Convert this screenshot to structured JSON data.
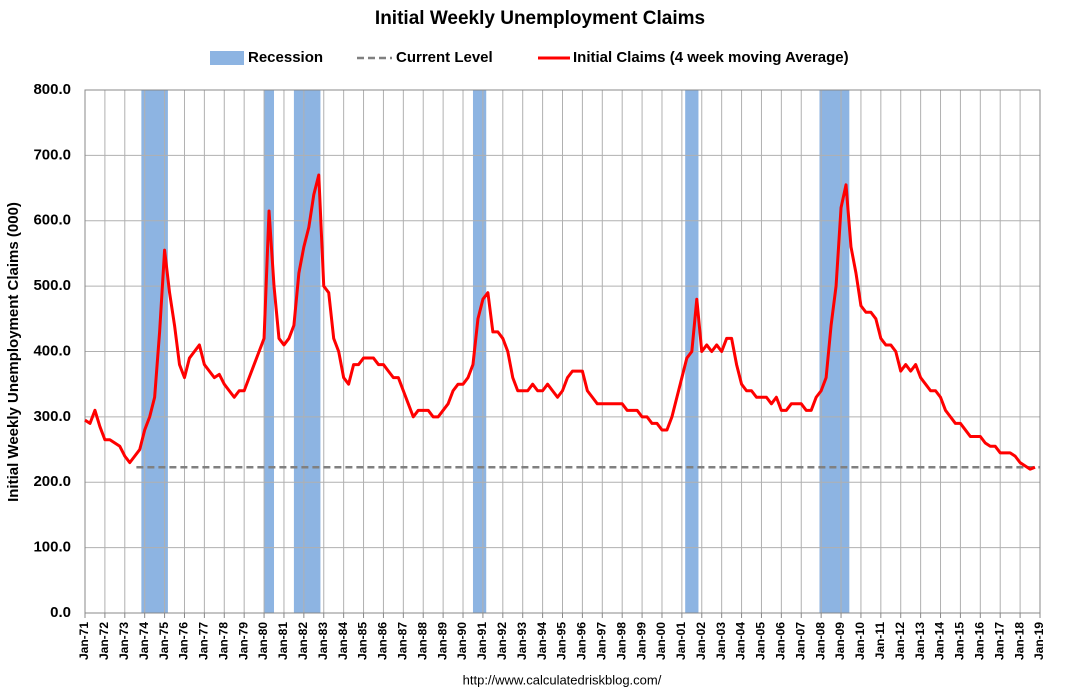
{
  "chart_data": {
    "type": "line",
    "title": "Initial Weekly Unemployment Claims",
    "y_label": "Initial Weekly Unemployment Claims (000)",
    "source": "http://www.calculatedriskblog.com/",
    "grid": true,
    "ylim": [
      0,
      800
    ],
    "yticks": [
      {
        "value": 0,
        "label": "0.0"
      },
      {
        "value": 100,
        "label": "100.0"
      },
      {
        "value": 200,
        "label": "200.0"
      },
      {
        "value": 300,
        "label": "300.0"
      },
      {
        "value": 400,
        "label": "400.0"
      },
      {
        "value": 500,
        "label": "500.0"
      },
      {
        "value": 600,
        "label": "600.0"
      },
      {
        "value": 700,
        "label": "700.0"
      },
      {
        "value": 800,
        "label": "800.0"
      }
    ],
    "xlim": [
      "1971-01",
      "2019-01"
    ],
    "xticks": [
      {
        "value": "1971-01",
        "label": "Jan-71"
      },
      {
        "value": "1972-01",
        "label": "Jan-72"
      },
      {
        "value": "1973-01",
        "label": "Jan-73"
      },
      {
        "value": "1974-01",
        "label": "Jan-74"
      },
      {
        "value": "1975-01",
        "label": "Jan-75"
      },
      {
        "value": "1976-01",
        "label": "Jan-76"
      },
      {
        "value": "1977-01",
        "label": "Jan-77"
      },
      {
        "value": "1978-01",
        "label": "Jan-78"
      },
      {
        "value": "1979-01",
        "label": "Jan-79"
      },
      {
        "value": "1980-01",
        "label": "Jan-80"
      },
      {
        "value": "1981-01",
        "label": "Jan-81"
      },
      {
        "value": "1982-01",
        "label": "Jan-82"
      },
      {
        "value": "1983-01",
        "label": "Jan-83"
      },
      {
        "value": "1984-01",
        "label": "Jan-84"
      },
      {
        "value": "1985-01",
        "label": "Jan-85"
      },
      {
        "value": "1986-01",
        "label": "Jan-86"
      },
      {
        "value": "1987-01",
        "label": "Jan-87"
      },
      {
        "value": "1988-01",
        "label": "Jan-88"
      },
      {
        "value": "1989-01",
        "label": "Jan-89"
      },
      {
        "value": "1990-01",
        "label": "Jan-90"
      },
      {
        "value": "1991-01",
        "label": "Jan-91"
      },
      {
        "value": "1992-01",
        "label": "Jan-92"
      },
      {
        "value": "1993-01",
        "label": "Jan-93"
      },
      {
        "value": "1994-01",
        "label": "Jan-94"
      },
      {
        "value": "1995-01",
        "label": "Jan-95"
      },
      {
        "value": "1996-01",
        "label": "Jan-96"
      },
      {
        "value": "1997-01",
        "label": "Jan-97"
      },
      {
        "value": "1998-01",
        "label": "Jan-98"
      },
      {
        "value": "1999-01",
        "label": "Jan-99"
      },
      {
        "value": "2000-01",
        "label": "Jan-00"
      },
      {
        "value": "2001-01",
        "label": "Jan-01"
      },
      {
        "value": "2002-01",
        "label": "Jan-02"
      },
      {
        "value": "2003-01",
        "label": "Jan-03"
      },
      {
        "value": "2004-01",
        "label": "Jan-04"
      },
      {
        "value": "2005-01",
        "label": "Jan-05"
      },
      {
        "value": "2006-01",
        "label": "Jan-06"
      },
      {
        "value": "2007-01",
        "label": "Jan-07"
      },
      {
        "value": "2008-01",
        "label": "Jan-08"
      },
      {
        "value": "2009-01",
        "label": "Jan-09"
      },
      {
        "value": "2010-01",
        "label": "Jan-10"
      },
      {
        "value": "2011-01",
        "label": "Jan-11"
      },
      {
        "value": "2012-01",
        "label": "Jan-12"
      },
      {
        "value": "2013-01",
        "label": "Jan-13"
      },
      {
        "value": "2014-01",
        "label": "Jan-14"
      },
      {
        "value": "2015-01",
        "label": "Jan-15"
      },
      {
        "value": "2016-01",
        "label": "Jan-16"
      },
      {
        "value": "2017-01",
        "label": "Jan-17"
      },
      {
        "value": "2018-01",
        "label": "Jan-18"
      },
      {
        "value": "2019-01",
        "label": "Jan-19"
      }
    ],
    "recessions": {
      "name": "Recession",
      "color": "#8db4e2",
      "periods": [
        [
          "1973-11",
          "1975-03"
        ],
        [
          "1980-01",
          "1980-07"
        ],
        [
          "1981-07",
          "1982-11"
        ],
        [
          "1990-07",
          "1991-03"
        ],
        [
          "2001-03",
          "2001-11"
        ],
        [
          "2007-12",
          "2009-06"
        ]
      ]
    },
    "current_level": {
      "name": "Current Level",
      "color": "#808080",
      "value": 223,
      "x": [
        "1973-08",
        "2019-01"
      ]
    },
    "series": [
      {
        "name": "Initial Claims (4 week moving Average)",
        "color": "#ff0000",
        "x": [
          "1971-01",
          "1971-04",
          "1971-07",
          "1971-10",
          "1972-01",
          "1972-04",
          "1972-07",
          "1972-10",
          "1973-01",
          "1973-04",
          "1973-07",
          "1973-10",
          "1974-01",
          "1974-04",
          "1974-07",
          "1974-10",
          "1975-01",
          "1975-04",
          "1975-07",
          "1975-10",
          "1976-01",
          "1976-04",
          "1976-07",
          "1976-10",
          "1977-01",
          "1977-04",
          "1977-07",
          "1977-10",
          "1978-01",
          "1978-04",
          "1978-07",
          "1978-10",
          "1979-01",
          "1979-04",
          "1979-07",
          "1979-10",
          "1980-01",
          "1980-04",
          "1980-07",
          "1980-10",
          "1981-01",
          "1981-04",
          "1981-07",
          "1981-10",
          "1982-01",
          "1982-04",
          "1982-07",
          "1982-10",
          "1983-01",
          "1983-04",
          "1983-07",
          "1983-10",
          "1984-01",
          "1984-04",
          "1984-07",
          "1984-10",
          "1985-01",
          "1985-04",
          "1985-07",
          "1985-10",
          "1986-01",
          "1986-04",
          "1986-07",
          "1986-10",
          "1987-01",
          "1987-04",
          "1987-07",
          "1987-10",
          "1988-01",
          "1988-04",
          "1988-07",
          "1988-10",
          "1989-01",
          "1989-04",
          "1989-07",
          "1989-10",
          "1990-01",
          "1990-04",
          "1990-07",
          "1990-10",
          "1991-01",
          "1991-04",
          "1991-07",
          "1991-10",
          "1992-01",
          "1992-04",
          "1992-07",
          "1992-10",
          "1993-01",
          "1993-04",
          "1993-07",
          "1993-10",
          "1994-01",
          "1994-04",
          "1994-07",
          "1994-10",
          "1995-01",
          "1995-04",
          "1995-07",
          "1995-10",
          "1996-01",
          "1996-04",
          "1996-07",
          "1996-10",
          "1997-01",
          "1997-04",
          "1997-07",
          "1997-10",
          "1998-01",
          "1998-04",
          "1998-07",
          "1998-10",
          "1999-01",
          "1999-04",
          "1999-07",
          "1999-10",
          "2000-01",
          "2000-04",
          "2000-07",
          "2000-10",
          "2001-01",
          "2001-04",
          "2001-07",
          "2001-10",
          "2002-01",
          "2002-04",
          "2002-07",
          "2002-10",
          "2003-01",
          "2003-04",
          "2003-07",
          "2003-10",
          "2004-01",
          "2004-04",
          "2004-07",
          "2004-10",
          "2005-01",
          "2005-04",
          "2005-07",
          "2005-10",
          "2006-01",
          "2006-04",
          "2006-07",
          "2006-10",
          "2007-01",
          "2007-04",
          "2007-07",
          "2007-10",
          "2008-01",
          "2008-04",
          "2008-07",
          "2008-10",
          "2009-01",
          "2009-04",
          "2009-07",
          "2009-10",
          "2010-01",
          "2010-04",
          "2010-07",
          "2010-10",
          "2011-01",
          "2011-04",
          "2011-07",
          "2011-10",
          "2012-01",
          "2012-04",
          "2012-07",
          "2012-10",
          "2013-01",
          "2013-04",
          "2013-07",
          "2013-10",
          "2014-01",
          "2014-04",
          "2014-07",
          "2014-10",
          "2015-01",
          "2015-04",
          "2015-07",
          "2015-10",
          "2016-01",
          "2016-04",
          "2016-07",
          "2016-10",
          "2017-01",
          "2017-04",
          "2017-07",
          "2017-10",
          "2018-01",
          "2018-04",
          "2018-07",
          "2018-10"
        ],
        "values": [
          295,
          290,
          310,
          285,
          265,
          265,
          260,
          255,
          240,
          230,
          240,
          250,
          280,
          300,
          330,
          430,
          555,
          490,
          440,
          380,
          360,
          390,
          400,
          410,
          380,
          370,
          360,
          365,
          350,
          340,
          330,
          340,
          340,
          360,
          380,
          400,
          420,
          615,
          500,
          420,
          410,
          420,
          440,
          520,
          560,
          590,
          640,
          670,
          500,
          490,
          420,
          400,
          360,
          350,
          380,
          380,
          390,
          390,
          390,
          380,
          380,
          370,
          360,
          360,
          340,
          320,
          300,
          310,
          310,
          310,
          300,
          300,
          310,
          320,
          340,
          350,
          350,
          360,
          380,
          450,
          480,
          490,
          430,
          430,
          420,
          400,
          360,
          340,
          340,
          340,
          350,
          340,
          340,
          350,
          340,
          330,
          340,
          360,
          370,
          370,
          370,
          340,
          330,
          320,
          320,
          320,
          320,
          320,
          320,
          310,
          310,
          310,
          300,
          300,
          290,
          290,
          280,
          280,
          300,
          330,
          360,
          390,
          400,
          480,
          400,
          410,
          400,
          410,
          400,
          420,
          420,
          380,
          350,
          340,
          340,
          330,
          330,
          330,
          320,
          330,
          310,
          310,
          320,
          320,
          320,
          310,
          310,
          330,
          340,
          360,
          440,
          500,
          620,
          655,
          560,
          520,
          470,
          460,
          460,
          450,
          420,
          410,
          410,
          400,
          370,
          380,
          370,
          380,
          360,
          350,
          340,
          340,
          330,
          310,
          300,
          290,
          290,
          280,
          270,
          270,
          270,
          260,
          255,
          255,
          245,
          245,
          245,
          240,
          230,
          225,
          220,
          223
        ]
      }
    ]
  }
}
